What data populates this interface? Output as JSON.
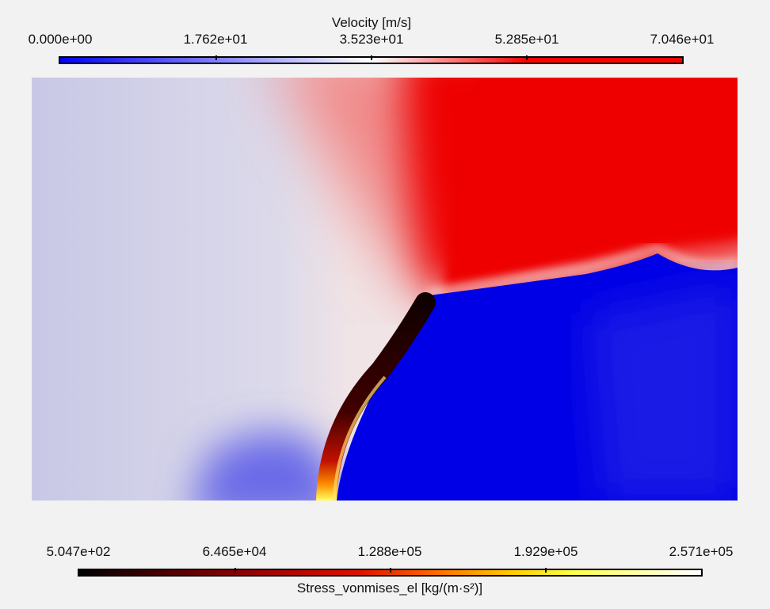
{
  "chart_data": {
    "type": "heatmap",
    "description_fields": "contour",
    "colorbars": [
      {
        "title": "Velocity [m/s]",
        "ticks": [
          "0.000e+00",
          "1.762e+01",
          "3.523e+01",
          "5.285e+01",
          "7.046e+01"
        ],
        "range": [
          0,
          70.46
        ],
        "colors": [
          "#0000ff",
          "#ffffff",
          "#ff0000"
        ],
        "placement": "top"
      },
      {
        "title": "Stress_vonmises_el [kg/(m·s²)]",
        "ticks": [
          "5.047e+02",
          "6.465e+04",
          "1.288e+05",
          "1.929e+05",
          "2.571e+05"
        ],
        "range": [
          504.7,
          257100
        ],
        "colors": [
          "#000000",
          "#8b0000",
          "#ff2000",
          "#ffd000",
          "#ffff50",
          "#ffffff"
        ],
        "placement": "bottom"
      }
    ]
  }
}
